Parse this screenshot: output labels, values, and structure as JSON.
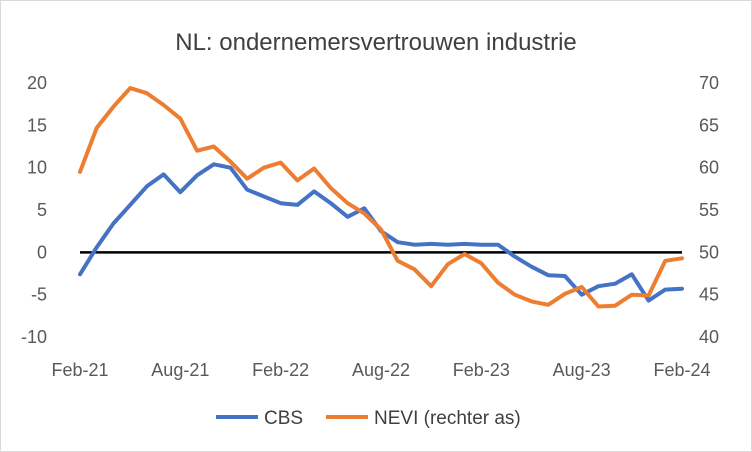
{
  "chart_data": {
    "type": "line",
    "title": "NL: ondernemersvertrouwen industrie",
    "categories": [
      "Feb-21",
      "Mar-21",
      "Apr-21",
      "May-21",
      "Jun-21",
      "Jul-21",
      "Aug-21",
      "Sep-21",
      "Oct-21",
      "Nov-21",
      "Dec-21",
      "Jan-22",
      "Feb-22",
      "Mar-22",
      "Apr-22",
      "May-22",
      "Jun-22",
      "Jul-22",
      "Aug-22",
      "Sep-22",
      "Oct-22",
      "Nov-22",
      "Dec-22",
      "Jan-23",
      "Feb-23",
      "Mar-23",
      "Apr-23",
      "May-23",
      "Jun-23",
      "Jul-23",
      "Aug-23",
      "Sep-23",
      "Oct-23",
      "Nov-23",
      "Dec-23",
      "Jan-24",
      "Feb-24"
    ],
    "x_tick_labels": [
      "Feb-21",
      "Aug-21",
      "Feb-22",
      "Aug-22",
      "Feb-23",
      "Aug-23",
      "Feb-24"
    ],
    "y_left": {
      "min": -10,
      "max": 20,
      "step": 5,
      "ticks": [
        "-10",
        "-5",
        "0",
        "5",
        "10",
        "15",
        "20"
      ]
    },
    "y_right": {
      "min": 40,
      "max": 70,
      "step": 5,
      "ticks": [
        "40",
        "45",
        "50",
        "55",
        "60",
        "65",
        "70"
      ]
    },
    "zero_line": 0,
    "series": [
      {
        "name": "CBS",
        "axis": "left",
        "color": "#4472c4",
        "values": [
          -2.6,
          0.6,
          3.4,
          5.6,
          7.8,
          9.2,
          7.1,
          9.1,
          10.4,
          10.0,
          7.4,
          6.6,
          5.8,
          5.6,
          7.2,
          5.8,
          4.2,
          5.2,
          2.5,
          1.2,
          0.9,
          1.0,
          0.9,
          1.0,
          0.9,
          0.9,
          -0.5,
          -1.7,
          -2.7,
          -2.8,
          -5.0,
          -4.0,
          -3.7,
          -2.6,
          -5.7,
          -4.4,
          -4.3
        ]
      },
      {
        "name": "NEVI (rechter as)",
        "axis": "right",
        "color": "#ed7d31",
        "values": [
          59.5,
          64.7,
          67.2,
          69.4,
          68.8,
          67.4,
          65.8,
          62.0,
          62.5,
          60.7,
          58.7,
          60.0,
          60.6,
          58.5,
          59.9,
          57.6,
          55.8,
          54.6,
          52.7,
          49.0,
          48.0,
          46.0,
          48.6,
          49.8,
          48.7,
          46.4,
          45.0,
          44.2,
          43.8,
          45.1,
          45.9,
          43.6,
          43.7,
          45.0,
          44.9,
          49.0,
          49.3
        ]
      }
    ],
    "legend": {
      "position": "bottom",
      "entries": [
        "CBS",
        "NEVI (rechter as)"
      ]
    },
    "grid": false
  }
}
